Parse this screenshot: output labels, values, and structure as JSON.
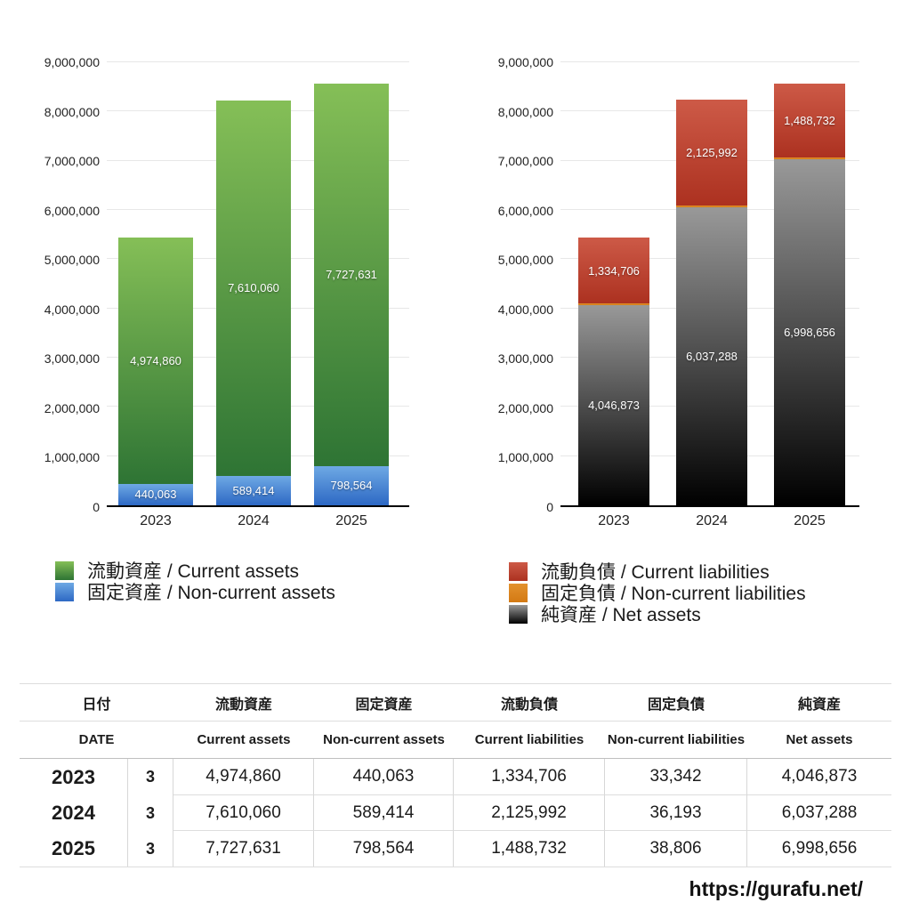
{
  "chart_data": [
    {
      "type": "bar",
      "stacked": true,
      "slug": "assets",
      "categories": [
        "2023",
        "2024",
        "2025"
      ],
      "ylim": [
        0,
        9000000
      ],
      "y_tick_labels": [
        "0",
        "1,000,000",
        "2,000,000",
        "3,000,000",
        "4,000,000",
        "5,000,000",
        "6,000,000",
        "7,000,000",
        "8,000,000",
        "9,000,000"
      ],
      "grid": true,
      "legend_position": "bottom-left",
      "series": [
        {
          "name": "流動資産 / Current assets",
          "slug": "current-assets",
          "values": [
            4974860,
            7610060,
            7727631
          ],
          "data_labels": [
            "4,974,860",
            "7,610,060",
            "7,727,631"
          ],
          "color_top": "#85bf57",
          "color_bottom": "#2e7434"
        },
        {
          "name": "固定資産 / Non-current assets",
          "slug": "non-current-assets",
          "values": [
            440063,
            589414,
            798564
          ],
          "data_labels": [
            "440,063",
            "589,414",
            "798,564"
          ],
          "color_top": "#6ea9e4",
          "color_bottom": "#2d68c4"
        }
      ]
    },
    {
      "type": "bar",
      "stacked": true,
      "slug": "liabilities",
      "categories": [
        "2023",
        "2024",
        "2025"
      ],
      "ylim": [
        0,
        9000000
      ],
      "y_tick_labels": [
        "0",
        "1,000,000",
        "2,000,000",
        "3,000,000",
        "4,000,000",
        "5,000,000",
        "6,000,000",
        "7,000,000",
        "8,000,000",
        "9,000,000"
      ],
      "grid": true,
      "legend_position": "bottom-left",
      "series": [
        {
          "name": "流動負債 / Current liabilities",
          "slug": "current-liabilities",
          "values": [
            1334706,
            2125992,
            1488732
          ],
          "data_labels": [
            "1,334,706",
            "2,125,992",
            "1,488,732"
          ],
          "color_top": "#cd5a47",
          "color_bottom": "#ac3120"
        },
        {
          "name": "固定負債 / Non-current liabilities",
          "slug": "non-current-liabilities",
          "values": [
            33342,
            36193,
            38806
          ],
          "data_labels": [
            "33,342",
            "36,193",
            "38,806"
          ],
          "color_top": "#e3922e",
          "color_bottom": "#d37913"
        },
        {
          "name": "純資産 / Net assets",
          "slug": "net-assets",
          "values": [
            4046873,
            6037288,
            6998656
          ],
          "data_labels": [
            "4,046,873",
            "6,037,288",
            "6,998,656"
          ],
          "color_top": "#999999",
          "color_bottom": "#000000"
        }
      ]
    }
  ],
  "table": {
    "header_jp": [
      "日付",
      "流動資産",
      "固定資産",
      "流動負債",
      "固定負債",
      "純資産"
    ],
    "header_en": [
      "DATE",
      "Current assets",
      "Non-current assets",
      "Current liabilities",
      "Non-current liabilities",
      "Net assets"
    ],
    "column_slugs": [
      "date",
      "current-assets",
      "non-current-assets",
      "current-liabilities",
      "non-current-liabilities",
      "net-assets"
    ],
    "rows": [
      {
        "year": "2023",
        "month": "3",
        "values": [
          "4,974,860",
          "440,063",
          "1,334,706",
          "33,342",
          "4,046,873"
        ]
      },
      {
        "year": "2024",
        "month": "3",
        "values": [
          "7,610,060",
          "589,414",
          "2,125,992",
          "36,193",
          "6,037,288"
        ]
      },
      {
        "year": "2025",
        "month": "3",
        "values": [
          "7,727,631",
          "798,564",
          "1,488,732",
          "38,806",
          "6,998,656"
        ]
      }
    ]
  },
  "watermark": {
    "text": "https://gurafu.net/"
  }
}
